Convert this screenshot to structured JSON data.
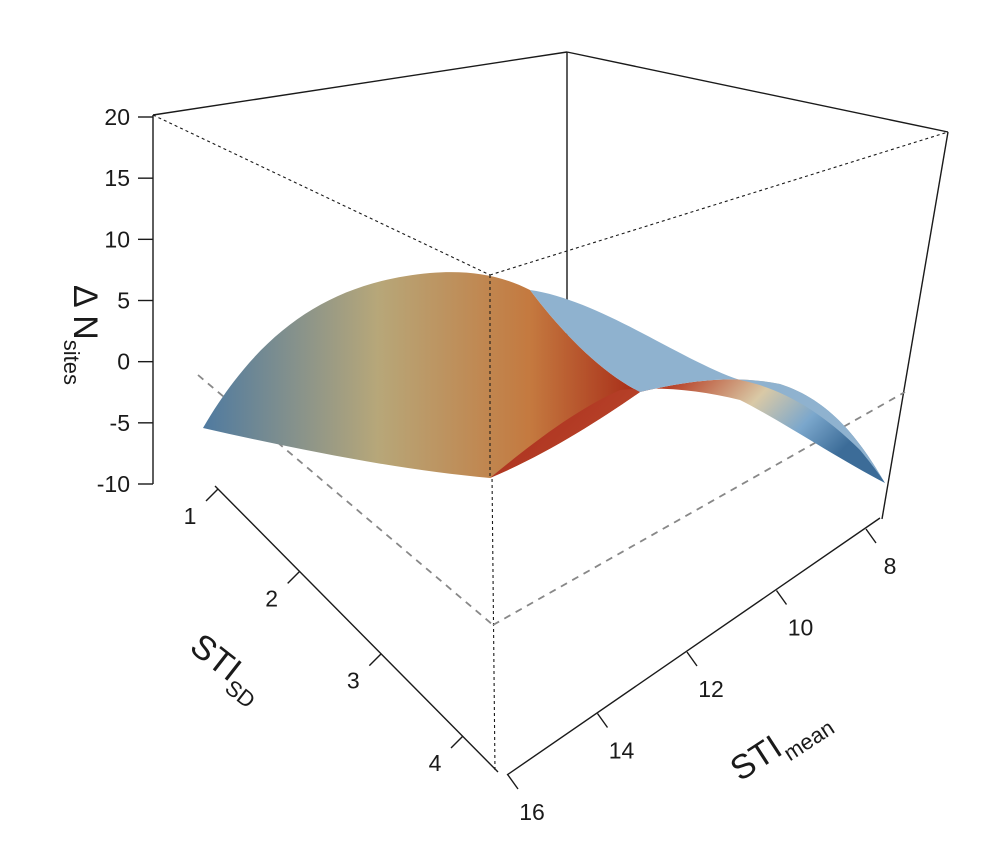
{
  "chart_data": {
    "type": "surface",
    "title": "",
    "z_axis": {
      "label_main": "Δ N",
      "label_sub": "sites",
      "range": [
        -10,
        20
      ],
      "ticks": [
        "20",
        "15",
        "10",
        "5",
        "0",
        "-5",
        "-10"
      ]
    },
    "sd_axis": {
      "label_main": "STI",
      "label_sub": "SD",
      "range": [
        1,
        4
      ],
      "ticks": [
        "1",
        "2",
        "3",
        "4"
      ]
    },
    "mean_axis": {
      "label_main": "STI",
      "label_sub": "mean",
      "range": [
        16,
        8
      ],
      "ticks": [
        "16",
        "14",
        "12",
        "10",
        "8"
      ]
    },
    "surface_corners": {
      "sd_1_mean_16": -5,
      "sd_4_mean_16": -7.5,
      "sd_4_mean_8": -7.5,
      "sd_1_mean_8": -5
    },
    "surface_peak": {
      "sd": 2.8,
      "mean": 14.2,
      "z": 8.5
    },
    "colors": {
      "low": "#3d6e98",
      "mid": "#c4b075",
      "high": "#a52718",
      "grid_dashed": "#888888",
      "frame": "#1a1a1a"
    }
  }
}
